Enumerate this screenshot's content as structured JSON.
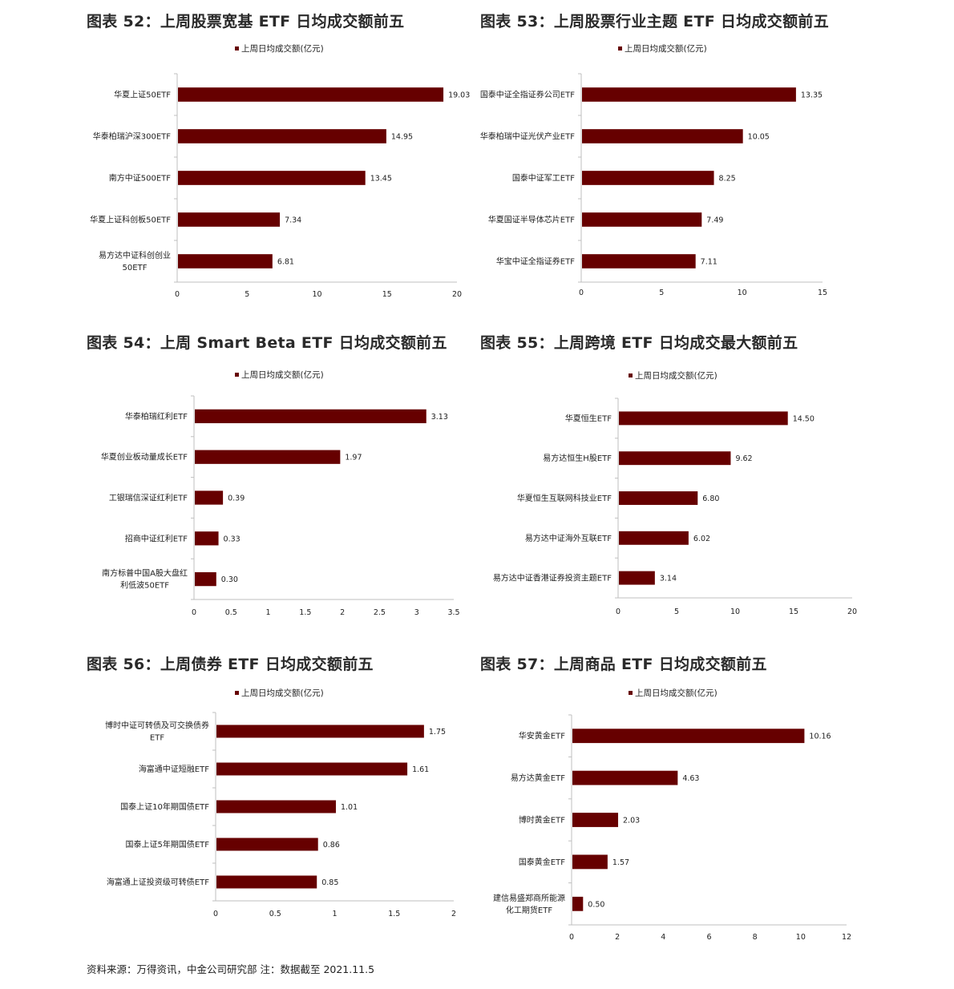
{
  "colors": {
    "bar": "#660000",
    "axis": "#bfbfbf",
    "text": "#222222"
  },
  "footer": "资料来源：万得资讯，中金公司研究部   注：数据截至 2021.11.5",
  "chart_data": [
    {
      "type": "bar",
      "orientation": "horizontal",
      "title": "图表 52：上周股票宽基 ETF 日均成交额前五",
      "legend": "上周日均成交额(亿元)",
      "categories": [
        [
          "华夏上证50ETF"
        ],
        [
          "华泰柏瑞沪深300ETF"
        ],
        [
          "南方中证500ETF"
        ],
        [
          "华夏上证科创板50ETF"
        ],
        [
          "易方达中证科创创业",
          "50ETF"
        ]
      ],
      "values": [
        19.03,
        14.95,
        13.45,
        7.34,
        6.81
      ],
      "value_labels": [
        "19.03",
        "14.95",
        "13.45",
        "7.34",
        "6.81"
      ],
      "xlim": [
        0,
        20
      ],
      "xticks": [
        "0",
        "5",
        "10",
        "15",
        "20"
      ]
    },
    {
      "type": "bar",
      "orientation": "horizontal",
      "title": "图表 53：上周股票行业主题 ETF 日均成交额前五",
      "legend": "上周日均成交额(亿元)",
      "categories": [
        [
          "国泰中证全指证券公司ETF"
        ],
        [
          "华泰柏瑞中证光伏产业ETF"
        ],
        [
          "国泰中证军工ETF"
        ],
        [
          "华夏国证半导体芯片ETF"
        ],
        [
          "华宝中证全指证券ETF"
        ]
      ],
      "values": [
        13.35,
        10.05,
        8.25,
        7.49,
        7.11
      ],
      "value_labels": [
        "13.35",
        "10.05",
        "8.25",
        "7.49",
        "7.11"
      ],
      "xlim": [
        0,
        15
      ],
      "xticks": [
        "0",
        "5",
        "10",
        "15"
      ]
    },
    {
      "type": "bar",
      "orientation": "horizontal",
      "title": "图表 54：上周 Smart Beta ETF 日均成交额前五",
      "legend": "上周日均成交额(亿元)",
      "categories": [
        [
          "华泰柏瑞红利ETF"
        ],
        [
          "华夏创业板动量成长ETF"
        ],
        [
          "工银瑞信深证红利ETF"
        ],
        [
          "招商中证红利ETF"
        ],
        [
          "南方标普中国A股大盘红",
          "利低波50ETF"
        ]
      ],
      "values": [
        3.13,
        1.97,
        0.39,
        0.33,
        0.3
      ],
      "value_labels": [
        "3.13",
        "1.97",
        "0.39",
        "0.33",
        "0.30"
      ],
      "xlim": [
        0,
        3.5
      ],
      "xticks": [
        "0",
        "0.5",
        "1",
        "1.5",
        "2",
        "2.5",
        "3",
        "3.5"
      ]
    },
    {
      "type": "bar",
      "orientation": "horizontal",
      "title": "图表 55：上周跨境 ETF 日均成交最大额前五",
      "legend": "上周日均成交额(亿元)",
      "categories": [
        [
          "华夏恒生ETF"
        ],
        [
          "易方达恒生H股ETF"
        ],
        [
          "华夏恒生互联网科技业ETF"
        ],
        [
          "易方达中证海外互联ETF"
        ],
        [
          "易方达中证香港证券投资主题ETF"
        ]
      ],
      "values": [
        14.5,
        9.62,
        6.8,
        6.02,
        3.14
      ],
      "value_labels": [
        "14.50",
        "9.62",
        "6.80",
        "6.02",
        "3.14"
      ],
      "xlim": [
        0,
        20
      ],
      "xticks": [
        "0",
        "5",
        "10",
        "15",
        "20"
      ]
    },
    {
      "type": "bar",
      "orientation": "horizontal",
      "title": "图表 56：上周债券 ETF 日均成交额前五",
      "legend": "上周日均成交额(亿元)",
      "categories": [
        [
          "博时中证可转债及可交换债券",
          "ETF"
        ],
        [
          "海富通中证短融ETF"
        ],
        [
          "国泰上证10年期国债ETF"
        ],
        [
          "国泰上证5年期国债ETF"
        ],
        [
          "海富通上证投资级可转债ETF"
        ]
      ],
      "values": [
        1.75,
        1.61,
        1.01,
        0.86,
        0.85
      ],
      "value_labels": [
        "1.75",
        "1.61",
        "1.01",
        "0.86",
        "0.85"
      ],
      "xlim": [
        0,
        2
      ],
      "xticks": [
        "0",
        "0.5",
        "1",
        "1.5",
        "2"
      ]
    },
    {
      "type": "bar",
      "orientation": "horizontal",
      "title": "图表 57：上周商品 ETF 日均成交额前五",
      "legend": "上周日均成交额(亿元)",
      "categories": [
        [
          "华安黄金ETF"
        ],
        [
          "易方达黄金ETF"
        ],
        [
          "博时黄金ETF"
        ],
        [
          "国泰黄金ETF"
        ],
        [
          "建信易盛郑商所能源",
          "化工期货ETF"
        ]
      ],
      "values": [
        10.16,
        4.63,
        2.03,
        1.57,
        0.5
      ],
      "value_labels": [
        "10.16",
        "4.63",
        "2.03",
        "1.57",
        "0.50"
      ],
      "xlim": [
        0,
        12
      ],
      "xticks": [
        "0",
        "2",
        "4",
        "6",
        "8",
        "10",
        "12"
      ]
    }
  ]
}
